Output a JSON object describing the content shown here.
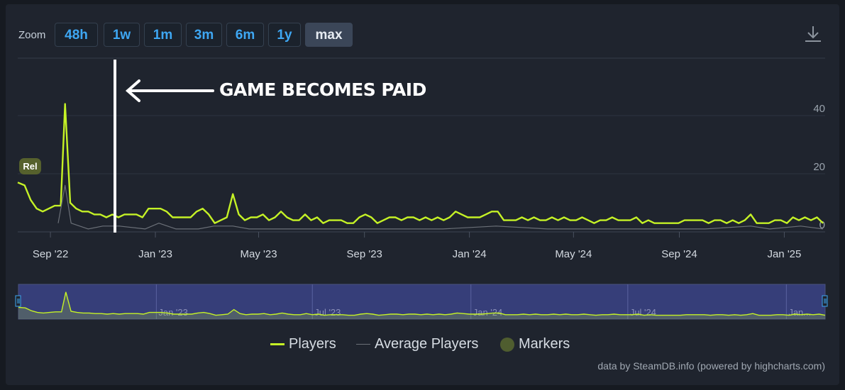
{
  "zoom": {
    "label": "Zoom",
    "buttons": [
      {
        "label": "48h",
        "active": false
      },
      {
        "label": "1w",
        "active": false
      },
      {
        "label": "1m",
        "active": false
      },
      {
        "label": "3m",
        "active": false
      },
      {
        "label": "6m",
        "active": false
      },
      {
        "label": "1y",
        "active": false
      },
      {
        "label": "max",
        "active": true
      }
    ]
  },
  "annotation": {
    "text": "GAME BECOMES PAID",
    "date": "2022-11-15"
  },
  "release_marker": {
    "label": "Rel",
    "date": "2022-07-25"
  },
  "chart_data": {
    "type": "line",
    "xaxis_type": "datetime",
    "x_ticks": [
      {
        "date": "2022-09-01",
        "label": "Sep '22"
      },
      {
        "date": "2023-01-01",
        "label": "Jan '23"
      },
      {
        "date": "2023-05-01",
        "label": "May '23"
      },
      {
        "date": "2023-09-01",
        "label": "Sep '23"
      },
      {
        "date": "2024-01-01",
        "label": "Jan '24"
      },
      {
        "date": "2024-05-01",
        "label": "May '24"
      },
      {
        "date": "2024-09-01",
        "label": "Sep '24"
      },
      {
        "date": "2025-01-01",
        "label": "Jan '25"
      }
    ],
    "y_ticks": [
      0,
      20,
      40
    ],
    "ylim": [
      0,
      60
    ],
    "xlim": [
      "2022-07-25",
      "2025-02-15"
    ],
    "grid": true,
    "legend_position": "bottom-center",
    "series": [
      {
        "name": "Players",
        "color": "#c5f226",
        "points": [
          [
            "2022-07-25",
            17
          ],
          [
            "2022-08-02",
            16
          ],
          [
            "2022-08-09",
            11
          ],
          [
            "2022-08-16",
            8
          ],
          [
            "2022-08-23",
            7
          ],
          [
            "2022-08-30",
            8
          ],
          [
            "2022-09-06",
            9
          ],
          [
            "2022-09-13",
            9
          ],
          [
            "2022-09-18",
            44
          ],
          [
            "2022-09-24",
            10
          ],
          [
            "2022-10-01",
            8
          ],
          [
            "2022-10-08",
            7
          ],
          [
            "2022-10-15",
            7
          ],
          [
            "2022-10-22",
            6
          ],
          [
            "2022-10-29",
            6
          ],
          [
            "2022-11-05",
            5
          ],
          [
            "2022-11-12",
            6
          ],
          [
            "2022-11-19",
            5
          ],
          [
            "2022-11-26",
            6
          ],
          [
            "2022-12-03",
            6
          ],
          [
            "2022-12-10",
            6
          ],
          [
            "2022-12-17",
            5
          ],
          [
            "2022-12-24",
            8
          ],
          [
            "2022-12-31",
            8
          ],
          [
            "2023-01-07",
            8
          ],
          [
            "2023-01-14",
            7
          ],
          [
            "2023-01-21",
            5
          ],
          [
            "2023-01-28",
            5
          ],
          [
            "2023-02-04",
            5
          ],
          [
            "2023-02-11",
            5
          ],
          [
            "2023-02-18",
            7
          ],
          [
            "2023-02-25",
            8
          ],
          [
            "2023-03-04",
            6
          ],
          [
            "2023-03-11",
            3
          ],
          [
            "2023-03-18",
            4
          ],
          [
            "2023-03-25",
            5
          ],
          [
            "2023-04-01",
            13
          ],
          [
            "2023-04-08",
            6
          ],
          [
            "2023-04-15",
            4
          ],
          [
            "2023-04-22",
            5
          ],
          [
            "2023-04-29",
            5
          ],
          [
            "2023-05-06",
            6
          ],
          [
            "2023-05-13",
            4
          ],
          [
            "2023-05-20",
            5
          ],
          [
            "2023-05-27",
            7
          ],
          [
            "2023-06-03",
            5
          ],
          [
            "2023-06-10",
            4
          ],
          [
            "2023-06-17",
            4
          ],
          [
            "2023-06-24",
            6
          ],
          [
            "2023-07-01",
            4
          ],
          [
            "2023-07-08",
            5
          ],
          [
            "2023-07-15",
            3
          ],
          [
            "2023-07-22",
            4
          ],
          [
            "2023-07-29",
            4
          ],
          [
            "2023-08-05",
            4
          ],
          [
            "2023-08-12",
            3
          ],
          [
            "2023-08-19",
            3
          ],
          [
            "2023-08-26",
            5
          ],
          [
            "2023-09-02",
            6
          ],
          [
            "2023-09-09",
            5
          ],
          [
            "2023-09-16",
            3
          ],
          [
            "2023-09-23",
            4
          ],
          [
            "2023-09-30",
            5
          ],
          [
            "2023-10-07",
            5
          ],
          [
            "2023-10-14",
            4
          ],
          [
            "2023-10-21",
            5
          ],
          [
            "2023-10-28",
            5
          ],
          [
            "2023-11-04",
            4
          ],
          [
            "2023-11-11",
            5
          ],
          [
            "2023-11-18",
            4
          ],
          [
            "2023-11-25",
            5
          ],
          [
            "2023-12-02",
            4
          ],
          [
            "2023-12-09",
            5
          ],
          [
            "2023-12-16",
            7
          ],
          [
            "2023-12-23",
            6
          ],
          [
            "2023-12-30",
            5
          ],
          [
            "2024-01-06",
            5
          ],
          [
            "2024-01-13",
            5
          ],
          [
            "2024-01-20",
            6
          ],
          [
            "2024-01-27",
            7
          ],
          [
            "2024-02-03",
            7
          ],
          [
            "2024-02-10",
            4
          ],
          [
            "2024-02-17",
            4
          ],
          [
            "2024-02-24",
            4
          ],
          [
            "2024-03-02",
            5
          ],
          [
            "2024-03-09",
            4
          ],
          [
            "2024-03-16",
            5
          ],
          [
            "2024-03-23",
            4
          ],
          [
            "2024-03-30",
            4
          ],
          [
            "2024-04-06",
            5
          ],
          [
            "2024-04-13",
            4
          ],
          [
            "2024-04-20",
            5
          ],
          [
            "2024-04-27",
            4
          ],
          [
            "2024-05-04",
            4
          ],
          [
            "2024-05-11",
            5
          ],
          [
            "2024-05-18",
            4
          ],
          [
            "2024-05-25",
            3
          ],
          [
            "2024-06-01",
            4
          ],
          [
            "2024-06-08",
            4
          ],
          [
            "2024-06-15",
            5
          ],
          [
            "2024-06-22",
            4
          ],
          [
            "2024-06-29",
            4
          ],
          [
            "2024-07-06",
            4
          ],
          [
            "2024-07-13",
            5
          ],
          [
            "2024-07-20",
            3
          ],
          [
            "2024-07-27",
            4
          ],
          [
            "2024-08-03",
            3
          ],
          [
            "2024-08-10",
            3
          ],
          [
            "2024-08-17",
            3
          ],
          [
            "2024-08-24",
            3
          ],
          [
            "2024-08-31",
            3
          ],
          [
            "2024-09-07",
            4
          ],
          [
            "2024-09-14",
            4
          ],
          [
            "2024-09-21",
            4
          ],
          [
            "2024-09-28",
            4
          ],
          [
            "2024-10-05",
            3
          ],
          [
            "2024-10-12",
            4
          ],
          [
            "2024-10-19",
            4
          ],
          [
            "2024-10-26",
            3
          ],
          [
            "2024-11-02",
            4
          ],
          [
            "2024-11-09",
            3
          ],
          [
            "2024-11-16",
            4
          ],
          [
            "2024-11-23",
            6
          ],
          [
            "2024-11-30",
            3
          ],
          [
            "2024-12-07",
            3
          ],
          [
            "2024-12-14",
            3
          ],
          [
            "2024-12-21",
            4
          ],
          [
            "2024-12-28",
            4
          ],
          [
            "2025-01-04",
            3
          ],
          [
            "2025-01-11",
            5
          ],
          [
            "2025-01-18",
            4
          ],
          [
            "2025-01-25",
            5
          ],
          [
            "2025-02-01",
            4
          ],
          [
            "2025-02-08",
            5
          ],
          [
            "2025-02-15",
            3
          ]
        ]
      },
      {
        "name": "Average Players",
        "color": "#6b7078",
        "points": [
          [
            "2022-09-10",
            3
          ],
          [
            "2022-09-18",
            16
          ],
          [
            "2022-09-25",
            3
          ],
          [
            "2022-10-05",
            2
          ],
          [
            "2022-10-15",
            1
          ],
          [
            "2022-11-01",
            2
          ],
          [
            "2022-11-20",
            2
          ],
          [
            "2022-12-20",
            1
          ],
          [
            "2023-01-05",
            3
          ],
          [
            "2023-01-25",
            1
          ],
          [
            "2023-02-20",
            1
          ],
          [
            "2023-03-10",
            2
          ],
          [
            "2023-04-01",
            2
          ],
          [
            "2023-04-20",
            1
          ],
          [
            "2023-06-01",
            1
          ],
          [
            "2023-08-01",
            1
          ],
          [
            "2023-10-01",
            1
          ],
          [
            "2023-12-01",
            1
          ],
          [
            "2024-02-01",
            2
          ],
          [
            "2024-04-01",
            1
          ],
          [
            "2024-06-01",
            1
          ],
          [
            "2024-08-01",
            1
          ],
          [
            "2024-10-01",
            1
          ],
          [
            "2024-11-23",
            2
          ],
          [
            "2024-12-15",
            1
          ],
          [
            "2025-01-20",
            2
          ],
          [
            "2025-02-15",
            1
          ]
        ]
      }
    ]
  },
  "navigator": {
    "tick_labels": [
      "Jan '23",
      "Jul '23",
      "Jan '24",
      "Jul '24",
      "Jan..."
    ]
  },
  "legend": {
    "items": [
      {
        "label": "Players",
        "color": "#c5f226"
      },
      {
        "label": "Average Players",
        "color": "#6b7078"
      },
      {
        "label": "Markers",
        "color": "#4f5d2f"
      }
    ]
  },
  "credit": "data by SteamDB.info (powered by highcharts.com)"
}
